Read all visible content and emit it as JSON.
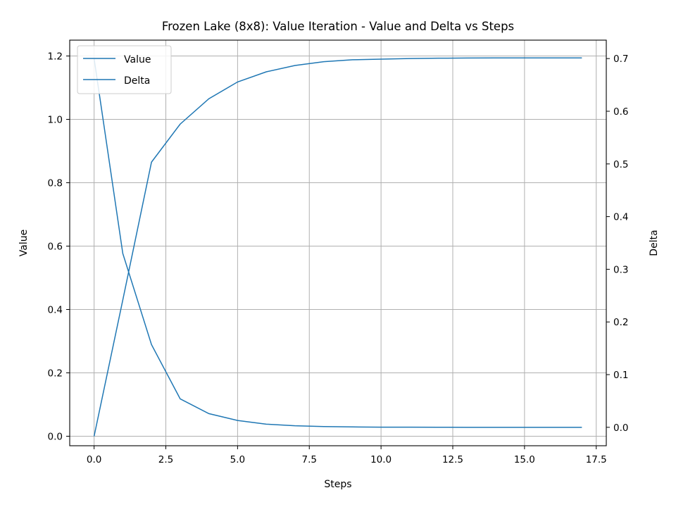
{
  "chart_data": {
    "type": "line",
    "title": "Frozen Lake (8x8): Value Iteration - Value and Delta vs Steps",
    "xlabel": "Steps",
    "ylabel_left": "Value",
    "ylabel_right": "Delta",
    "xlim": [
      -0.85,
      17.85
    ],
    "ylim_left": [
      -0.03,
      1.25
    ],
    "ylim_right": [
      -0.035,
      0.735
    ],
    "xticks": [
      0.0,
      2.5,
      5.0,
      7.5,
      10.0,
      12.5,
      15.0,
      17.5
    ],
    "xtick_labels": [
      "0.0",
      "2.5",
      "5.0",
      "7.5",
      "10.0",
      "12.5",
      "15.0",
      "17.5"
    ],
    "yticks_left": [
      0.0,
      0.2,
      0.4,
      0.6,
      0.8,
      1.0,
      1.2
    ],
    "ytick_labels_left": [
      "0.0",
      "0.2",
      "0.4",
      "0.6",
      "0.8",
      "1.0",
      "1.2"
    ],
    "yticks_right": [
      0.0,
      0.1,
      0.2,
      0.3,
      0.4,
      0.5,
      0.6,
      0.7
    ],
    "ytick_labels_right": [
      "0.0",
      "0.1",
      "0.2",
      "0.3",
      "0.4",
      "0.5",
      "0.6",
      "0.7"
    ],
    "grid": true,
    "legend_position": "upper-left",
    "x": [
      0,
      1,
      2,
      3,
      4,
      5,
      6,
      7,
      8,
      9,
      10,
      11,
      12,
      13,
      14,
      15,
      16,
      17
    ],
    "series": [
      {
        "name": "Value",
        "axis": "left",
        "color": "#1f77b4",
        "values": [
          0.0,
          0.0,
          0.0,
          0.0,
          0.0,
          0.0,
          0.0,
          0.0,
          0.0,
          0.0,
          0.0,
          0.0,
          0.0,
          0.0,
          0.0,
          0.0,
          0.0,
          0.0
        ]
      },
      {
        "name": "Delta",
        "axis": "right",
        "color": "#1f77b4",
        "values": [
          0.7,
          0.33,
          0.157,
          0.054,
          0.026,
          0.013,
          0.006,
          0.003,
          0.0015,
          0.0007,
          0.0003,
          0.0002,
          0.0001,
          0.0,
          0.0,
          0.0,
          0.0,
          0.0
        ]
      }
    ],
    "overlay_value_curve": {
      "axis": "left",
      "values": [
        0.0,
        0.43,
        0.865,
        0.985,
        1.065,
        1.118,
        1.15,
        1.17,
        1.182,
        1.188,
        1.19,
        1.192,
        1.193,
        1.1935,
        1.194,
        1.194,
        1.194,
        1.194
      ]
    }
  }
}
